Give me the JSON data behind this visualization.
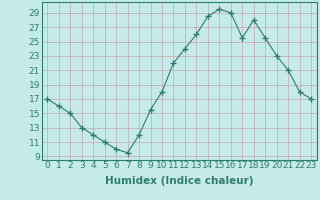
{
  "x": [
    0,
    1,
    2,
    3,
    4,
    5,
    6,
    7,
    8,
    9,
    10,
    11,
    12,
    13,
    14,
    15,
    16,
    17,
    18,
    19,
    20,
    21,
    22,
    23
  ],
  "y": [
    17,
    16,
    15,
    13,
    12,
    11,
    10,
    9.5,
    12,
    15.5,
    18,
    22,
    24,
    26,
    28.5,
    29.5,
    29,
    25.5,
    28,
    25.5,
    23,
    21,
    18,
    17
  ],
  "line_color": "#2e7d6e",
  "marker": "+",
  "marker_size": 4,
  "bg_color": "#c5eaea",
  "grid_color": "#c8a8a8",
  "xlabel": "Humidex (Indice chaleur)",
  "xlabel_fontsize": 7.5,
  "yticks": [
    9,
    11,
    13,
    15,
    17,
    19,
    21,
    23,
    25,
    27,
    29
  ],
  "xticks": [
    0,
    1,
    2,
    3,
    4,
    5,
    6,
    7,
    8,
    9,
    10,
    11,
    12,
    13,
    14,
    15,
    16,
    17,
    18,
    19,
    20,
    21,
    22,
    23
  ],
  "ylim": [
    8.5,
    30.5
  ],
  "xlim": [
    -0.5,
    23.5
  ],
  "tick_fontsize": 6.5,
  "spine_color": "#2e7d6e",
  "label_color": "#2e7d6e"
}
